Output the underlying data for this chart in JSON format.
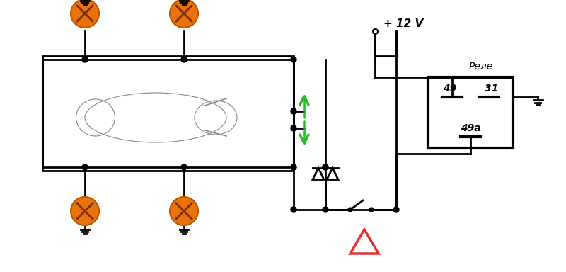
{
  "bg_color": "#ffffff",
  "voltage_label": "+ 12 V",
  "relay_label": "Реле",
  "wire_color": "#000000",
  "bulb_color": "#e8720c",
  "arrow_color": "#2db52d",
  "hazard_color": "#e63030",
  "junction_color": "#000000",
  "relay_lw": 3.0,
  "wire_lw": 2.0,
  "bulb_r": 20,
  "ground_size": 12,
  "junction_r": 4
}
